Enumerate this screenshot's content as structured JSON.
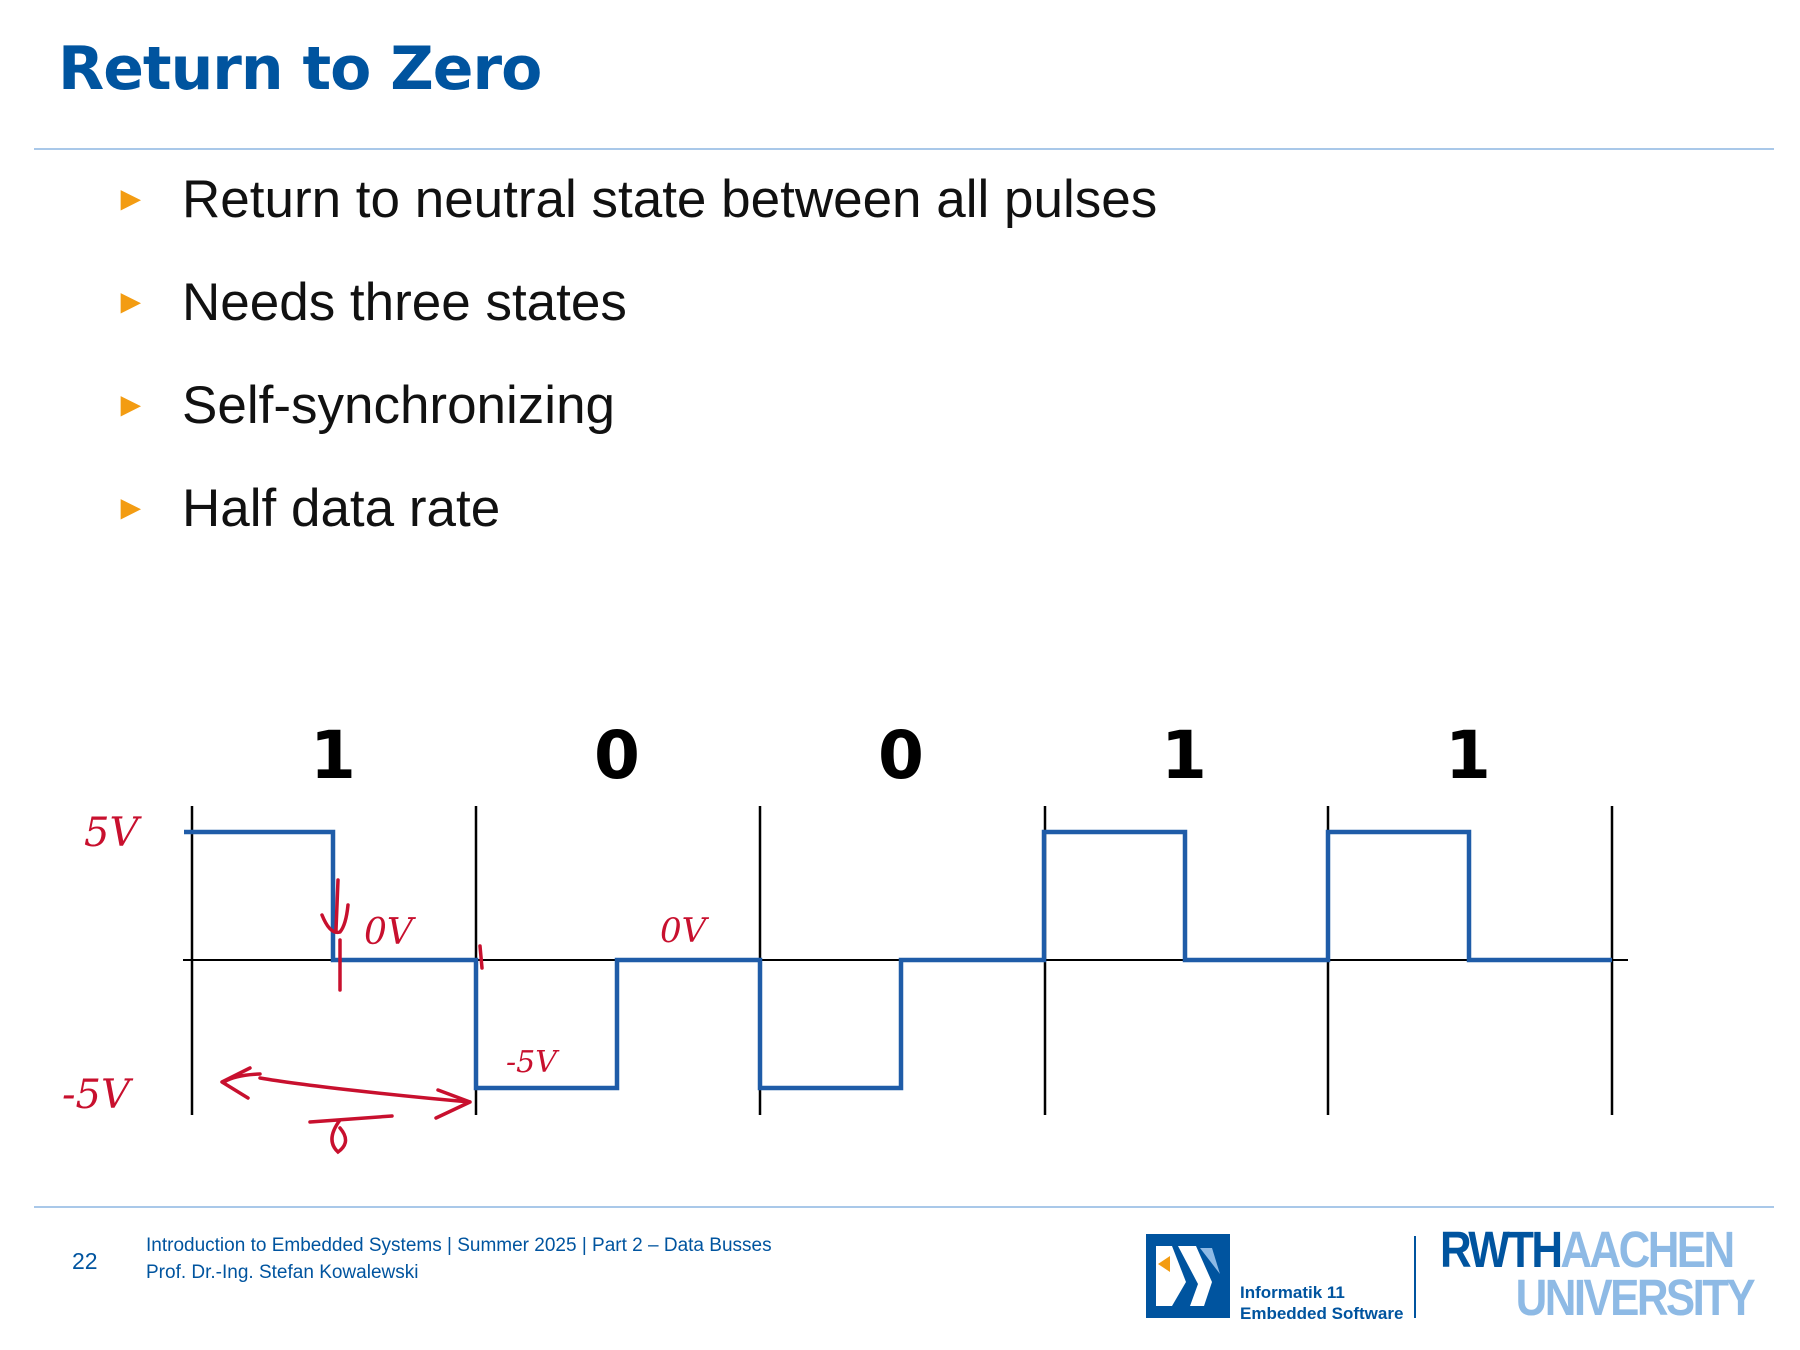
{
  "slide": {
    "title": "Return to Zero",
    "bullets": [
      "Return to neutral state between all pulses",
      "Needs three states",
      "Self-synchronizing",
      "Half data rate"
    ],
    "bullet_marker": "►"
  },
  "diagram": {
    "bits": [
      "1",
      "0",
      "0",
      "1",
      "1"
    ],
    "signal_levels": [
      1,
      -1,
      -1,
      1,
      1
    ],
    "handwritten_annotations": [
      "5V",
      "0V",
      "0V",
      "-5V",
      "-5V"
    ],
    "colors": {
      "signal": "#1f5ca8",
      "annotation": "#c8102e",
      "axis": "#000000"
    }
  },
  "footer": {
    "page_number": "22",
    "line1": "Introduction to Embedded Systems | Summer 2025 | Part 2 – Data Busses",
    "line2": "Prof. Dr.-Ing. Stefan Kowalewski",
    "institute_line1": "Informatik 11",
    "institute_line2": "Embedded Software",
    "university_part1": "RWTH",
    "university_part2": "AACHEN",
    "university_line2": "UNIVERSITY"
  },
  "colors": {
    "title": "#00549f",
    "rule": "#a9c8e9",
    "bullet_marker": "#f39c12"
  }
}
